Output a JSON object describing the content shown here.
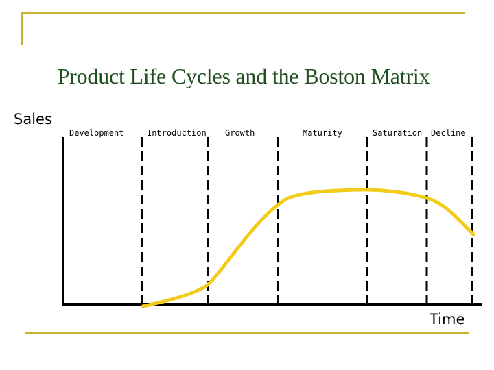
{
  "title": "Product Life Cycles and the Boston Matrix",
  "axes": {
    "y_label": "Sales",
    "x_label": "Time"
  },
  "stages": [
    {
      "label": "Development"
    },
    {
      "label": "Introduction"
    },
    {
      "label": "Growth"
    },
    {
      "label": "Maturity"
    },
    {
      "label": "Saturation"
    },
    {
      "label": "Decline"
    }
  ],
  "colors": {
    "accent": "#c8b030",
    "title": "#1f4f1f",
    "curve": "#f2cc1a",
    "axis": "#000000"
  }
}
